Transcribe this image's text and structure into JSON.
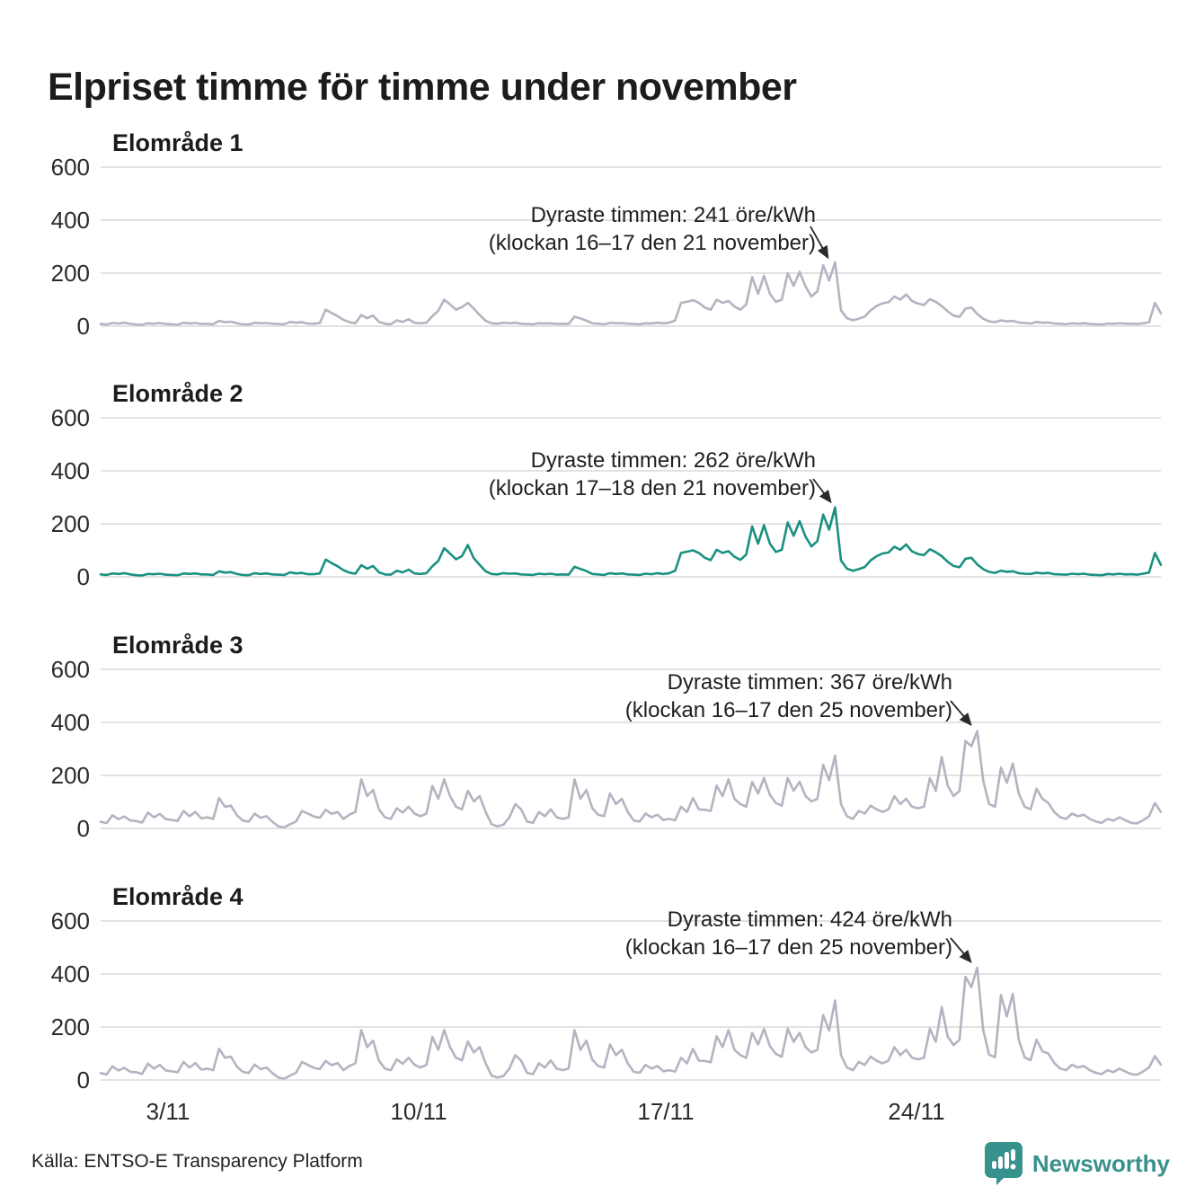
{
  "title": "Elpriset timme för timme under november",
  "source": "Källa: ENTSO-E Transparency Platform",
  "brand": {
    "name": "Newsworthy",
    "color": "#37918d"
  },
  "colors": {
    "highlight_line": "#1a9180",
    "muted_line": "#b5b3c1",
    "grid": "#e2e2e2",
    "text": "#1c1c1c",
    "arrow": "#2a2a2a"
  },
  "y_axis": {
    "ticks": [
      "600",
      "400",
      "200",
      "0"
    ]
  },
  "x_axis": {
    "labels": [
      "3/11",
      "10/11",
      "17/11",
      "24/11"
    ]
  },
  "chart_data": {
    "type": "line",
    "title": "Elpriset timme för timme under november",
    "unit": "öre/kWh",
    "x_domain": "1–30 november, timvärden (samplade var 4:e timme)",
    "days": 30,
    "samples_per_day": 6,
    "ylim": [
      0,
      650
    ],
    "grid": true,
    "panels": [
      {
        "label": "Elområde 1",
        "highlight": false,
        "annotation": {
          "line1": "Dyraste timmen: 241 öre/kWh",
          "line2": "(klockan 16–17 den 21 november)",
          "max_value": 241,
          "max_time": "klockan 16–17 den 21 november"
        },
        "values": [
          8,
          6,
          12,
          10,
          13,
          9,
          6,
          5,
          11,
          9,
          12,
          8,
          7,
          5,
          13,
          10,
          12,
          8,
          9,
          7,
          20,
          15,
          17,
          11,
          7,
          6,
          13,
          11,
          12,
          9,
          8,
          7,
          16,
          13,
          15,
          10,
          9,
          12,
          62,
          50,
          38,
          24,
          15,
          11,
          42,
          30,
          40,
          16,
          9,
          7,
          22,
          16,
          26,
          13,
          11,
          13,
          38,
          58,
          100,
          82,
          62,
          72,
          88,
          66,
          42,
          20,
          11,
          9,
          13,
          11,
          13,
          9,
          8,
          7,
          11,
          10,
          11,
          8,
          9,
          8,
          36,
          29,
          21,
          11,
          9,
          7,
          13,
          11,
          12,
          9,
          8,
          7,
          11,
          10,
          13,
          11,
          13,
          22,
          88,
          92,
          98,
          88,
          70,
          62,
          100,
          88,
          95,
          74,
          62,
          82,
          185,
          122,
          190,
          122,
          92,
          100,
          200,
          152,
          205,
          150,
          112,
          132,
          230,
          172,
          241,
          60,
          30,
          22,
          28,
          36,
          60,
          76,
          86,
          90,
          112,
          100,
          120,
          95,
          85,
          80,
          102,
          92,
          76,
          56,
          40,
          35,
          66,
          70,
          46,
          28,
          18,
          15,
          22,
          18,
          20,
          14,
          12,
          10,
          16,
          13,
          14,
          10,
          9,
          7,
          11,
          9,
          11,
          8,
          7,
          6,
          10,
          9,
          11,
          9,
          9,
          8,
          11,
          15,
          88,
          48
        ]
      },
      {
        "label": "Elområde 2",
        "highlight": true,
        "annotation": {
          "line1": "Dyraste timmen: 262 öre/kWh",
          "line2": "(klockan 17–18 den 21 november)",
          "max_value": 262,
          "max_time": "klockan 17–18 den 21 november"
        },
        "values": [
          9,
          7,
          13,
          11,
          14,
          9,
          6,
          5,
          11,
          10,
          12,
          8,
          7,
          6,
          13,
          11,
          13,
          9,
          9,
          7,
          21,
          16,
          18,
          11,
          7,
          6,
          14,
          11,
          13,
          9,
          8,
          7,
          17,
          13,
          15,
          10,
          10,
          13,
          65,
          52,
          40,
          25,
          16,
          12,
          44,
          31,
          41,
          17,
          9,
          8,
          23,
          17,
          27,
          13,
          11,
          14,
          40,
          60,
          108,
          88,
          66,
          78,
          120,
          70,
          45,
          21,
          11,
          9,
          14,
          12,
          13,
          9,
          8,
          7,
          12,
          10,
          12,
          8,
          9,
          8,
          38,
          30,
          22,
          11,
          9,
          7,
          14,
          11,
          13,
          9,
          8,
          7,
          12,
          10,
          14,
          11,
          14,
          23,
          90,
          95,
          100,
          90,
          72,
          63,
          102,
          90,
          97,
          76,
          64,
          84,
          190,
          125,
          195,
          125,
          94,
          102,
          205,
          155,
          210,
          152,
          115,
          135,
          235,
          178,
          262,
          62,
          31,
          23,
          29,
          37,
          62,
          78,
          88,
          92,
          114,
          102,
          122,
          96,
          86,
          82,
          104,
          93,
          78,
          57,
          41,
          36,
          68,
          72,
          47,
          29,
          19,
          15,
          23,
          19,
          21,
          14,
          12,
          11,
          16,
          13,
          15,
          10,
          9,
          8,
          12,
          10,
          12,
          8,
          7,
          6,
          11,
          9,
          12,
          9,
          10,
          8,
          12,
          16,
          90,
          45
        ]
      },
      {
        "label": "Elområde 3",
        "highlight": false,
        "annotation": {
          "line1": "Dyraste timmen: 367 öre/kWh",
          "line2": "(klockan 16–17 den 25 november)",
          "max_value": 367,
          "max_time": "klockan 16–17 den 25 november"
        },
        "values": [
          25,
          20,
          50,
          35,
          45,
          30,
          28,
          22,
          60,
          42,
          55,
          35,
          32,
          28,
          66,
          46,
          62,
          38,
          42,
          36,
          115,
          82,
          86,
          50,
          30,
          25,
          56,
          40,
          46,
          25,
          8,
          4,
          16,
          26,
          66,
          56,
          45,
          40,
          70,
          55,
          62,
          36,
          52,
          62,
          185,
          122,
          145,
          72,
          42,
          36,
          76,
          60,
          82,
          56,
          46,
          56,
          160,
          112,
          185,
          122,
          82,
          72,
          142,
          102,
          122,
          62,
          16,
          8,
          14,
          42,
          92,
          72,
          26,
          21,
          62,
          46,
          72,
          42,
          36,
          42,
          185,
          112,
          145,
          76,
          52,
          46,
          132,
          92,
          112,
          62,
          30,
          26,
          56,
          42,
          52,
          32,
          36,
          31,
          82,
          62,
          115,
          72,
          70,
          66,
          162,
          122,
          185,
          112,
          92,
          82,
          175,
          132,
          190,
          126,
          96,
          86,
          190,
          142,
          176,
          122,
          102,
          112,
          240,
          182,
          275,
          92,
          46,
          36,
          66,
          56,
          86,
          72,
          62,
          72,
          122,
          92,
          112,
          82,
          76,
          82,
          190,
          142,
          270,
          162,
          122,
          142,
          330,
          310,
          367,
          182,
          92,
          82,
          230,
          172,
          245,
          132,
          82,
          72,
          150,
          112,
          96,
          62,
          42,
          36,
          56,
          46,
          52,
          36,
          26,
          21,
          36,
          29,
          42,
          31,
          21,
          19,
          31,
          46,
          96,
          62
        ]
      },
      {
        "label": "Elområde 4",
        "highlight": false,
        "annotation": {
          "line1": "Dyraste timmen: 424 öre/kWh",
          "line2": "(klockan 16–17 den 25 november)",
          "max_value": 424,
          "max_time": "klockan 16–17 den 25 november"
        },
        "values": [
          26,
          21,
          52,
          36,
          46,
          31,
          29,
          23,
          62,
          43,
          57,
          36,
          33,
          29,
          68,
          47,
          64,
          39,
          43,
          37,
          118,
          84,
          88,
          51,
          31,
          26,
          58,
          41,
          47,
          26,
          9,
          5,
          17,
          27,
          68,
          57,
          46,
          41,
          72,
          56,
          64,
          37,
          53,
          63,
          188,
          124,
          148,
          73,
          43,
          37,
          78,
          61,
          84,
          57,
          47,
          57,
          163,
          114,
          188,
          124,
          84,
          74,
          145,
          104,
          124,
          63,
          17,
          9,
          15,
          43,
          94,
          73,
          27,
          22,
          63,
          47,
          74,
          43,
          37,
          43,
          188,
          114,
          148,
          77,
          53,
          47,
          134,
          94,
          114,
          63,
          31,
          27,
          57,
          43,
          53,
          33,
          37,
          32,
          84,
          63,
          118,
          73,
          72,
          67,
          165,
          124,
          188,
          114,
          94,
          84,
          178,
          134,
          193,
          128,
          98,
          88,
          193,
          144,
          178,
          124,
          104,
          114,
          245,
          186,
          300,
          94,
          47,
          37,
          68,
          57,
          88,
          73,
          63,
          73,
          124,
          94,
          114,
          84,
          78,
          84,
          193,
          144,
          275,
          164,
          132,
          152,
          390,
          350,
          424,
          190,
          96,
          86,
          320,
          240,
          325,
          152,
          85,
          75,
          152,
          108,
          100,
          64,
          43,
          37,
          58,
          47,
          53,
          37,
          27,
          22,
          37,
          30,
          43,
          32,
          22,
          20,
          32,
          47,
          90,
          58
        ]
      }
    ]
  }
}
